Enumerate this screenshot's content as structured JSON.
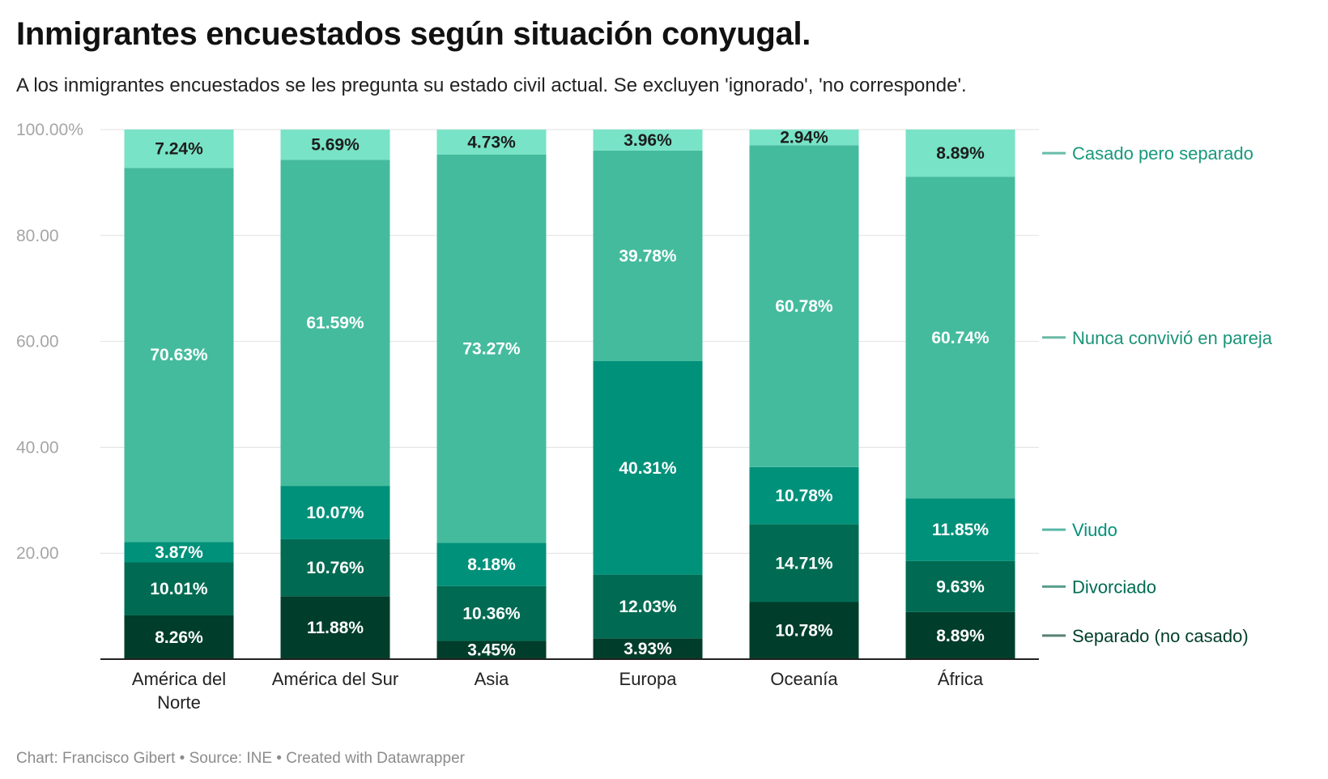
{
  "title": "Inmigrantes encuestados según situación conyugal.",
  "subtitle": "A los inmigrantes encuestados se les pregunta su estado civil actual. Se excluyen 'ignorado', 'no corresponde'.",
  "footer": "Chart: Francisco Gibert • Source: INE • Created with Datawrapper",
  "chart_data": {
    "type": "bar",
    "stacked": true,
    "categories": [
      [
        "América del",
        "Norte"
      ],
      [
        "América del Sur"
      ],
      [
        "Asia"
      ],
      [
        "Europa"
      ],
      [
        "Oceanía"
      ],
      [
        "África"
      ]
    ],
    "series": [
      {
        "name": "Separado (no casado)",
        "color": "#003d2a",
        "text_color": "#ffffff",
        "legend_color": "#003d2a",
        "values": [
          8.26,
          11.88,
          3.45,
          3.93,
          10.78,
          8.89
        ]
      },
      {
        "name": "Divorciado",
        "color": "#006b52",
        "text_color": "#ffffff",
        "legend_color": "#006b52",
        "values": [
          10.01,
          10.76,
          10.36,
          12.03,
          14.71,
          9.63
        ]
      },
      {
        "name": "Viudo",
        "color": "#00917a",
        "text_color": "#ffffff",
        "legend_color": "#00917a",
        "values": [
          3.87,
          10.07,
          8.18,
          40.31,
          10.78,
          11.85
        ]
      },
      {
        "name": "Nunca convivió en pareja",
        "color": "#45bb9e",
        "text_color": "#ffffff",
        "legend_color": "#1b9478",
        "values": [
          70.63,
          61.59,
          73.27,
          39.78,
          60.78,
          60.74
        ]
      },
      {
        "name": "Casado pero separado",
        "color": "#78e3c6",
        "text_color": "#1d1d1d",
        "legend_color": "#17997c",
        "values": [
          7.24,
          5.69,
          4.73,
          3.96,
          2.94,
          8.89
        ]
      }
    ],
    "value_format": "{v}%",
    "ylim": [
      0,
      100
    ],
    "yticks": [
      {
        "value": 20,
        "label": "20.00"
      },
      {
        "value": 40,
        "label": "40.00"
      },
      {
        "value": 60,
        "label": "60.00"
      },
      {
        "value": 80,
        "label": "80.00"
      },
      {
        "value": 100,
        "label": "100.00%"
      }
    ],
    "grid": true,
    "legend_placement": "right"
  }
}
